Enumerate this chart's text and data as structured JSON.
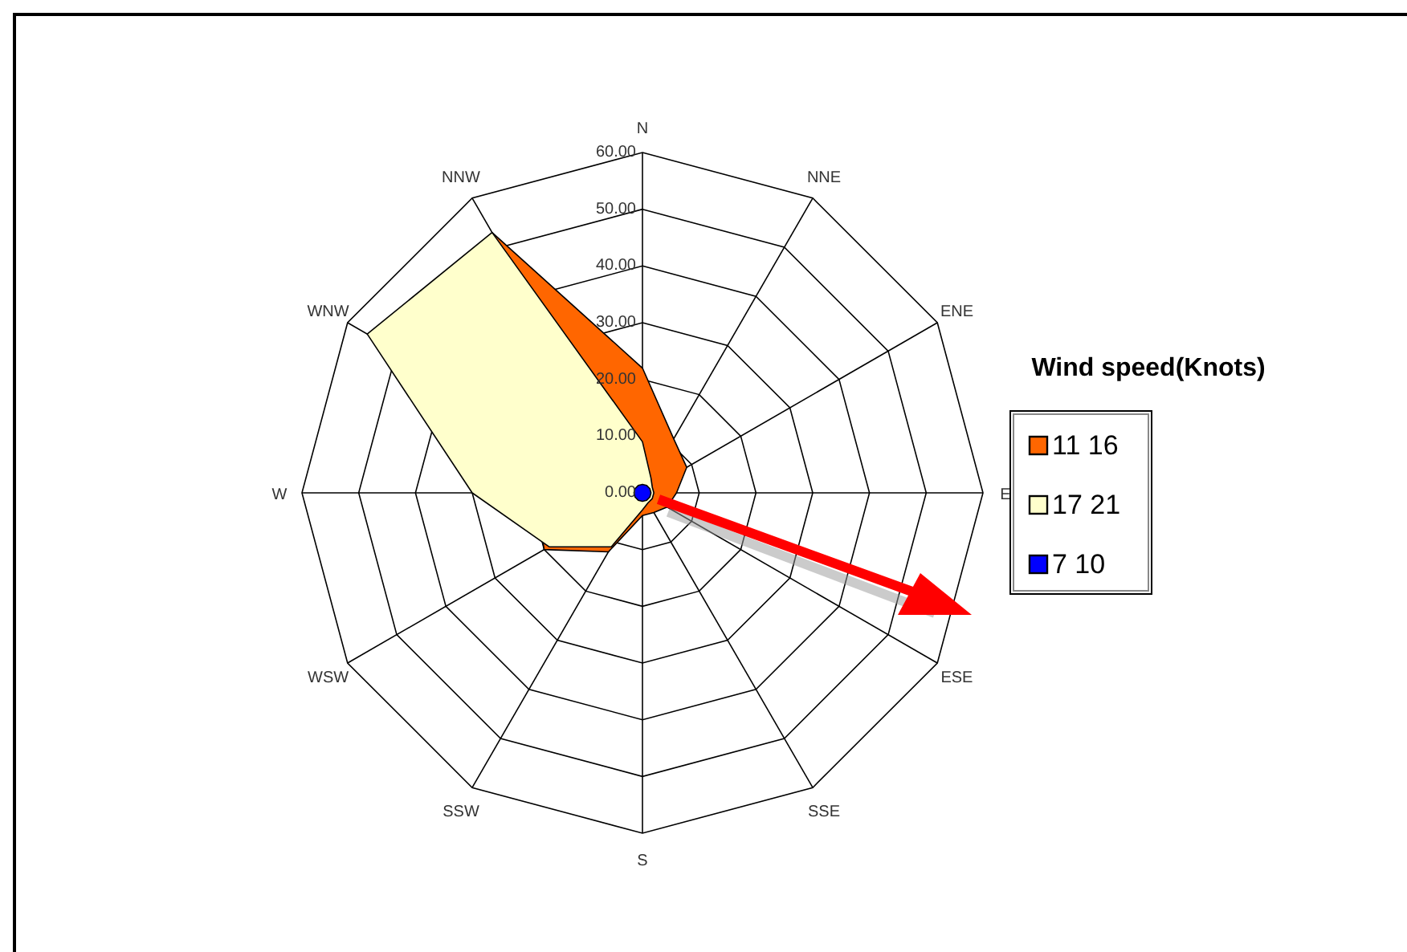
{
  "chart_data": {
    "type": "radar",
    "legend_title": "Wind speed(Knots)",
    "legend": "right",
    "grid": true,
    "marker": "none",
    "categories": [
      "N",
      "NNE",
      "ENE",
      "E",
      "ESE",
      "SSE",
      "S",
      "SSW",
      "WSW",
      "W",
      "WNW",
      "NNW"
    ],
    "ylim": [
      0,
      60
    ],
    "yticks": [
      {
        "value": 0,
        "label": "0.00"
      },
      {
        "value": 10,
        "label": "10.00"
      },
      {
        "value": 20,
        "label": "20.00"
      },
      {
        "value": 30,
        "label": "30.00"
      },
      {
        "value": 40,
        "label": "40.00"
      },
      {
        "value": 50,
        "label": "50.00"
      },
      {
        "value": 60,
        "label": "60.00"
      }
    ],
    "series": [
      {
        "name": "11 16",
        "color": "#ff6600",
        "values": [
          22,
          11,
          9,
          6,
          5,
          4,
          4,
          12,
          20,
          null,
          null,
          53
        ]
      },
      {
        "name": "17 21",
        "color": "#ffffcc",
        "values": [
          9,
          3,
          2,
          2,
          2,
          2,
          3,
          11,
          19,
          30,
          56,
          53
        ]
      },
      {
        "name": "7 10",
        "color": "#0000ff",
        "values": [
          1.5,
          1.5,
          1.5,
          1.5,
          1.5,
          1.5,
          1.5,
          1.5,
          1.5,
          1.5,
          1.5,
          1.5
        ]
      }
    ]
  }
}
